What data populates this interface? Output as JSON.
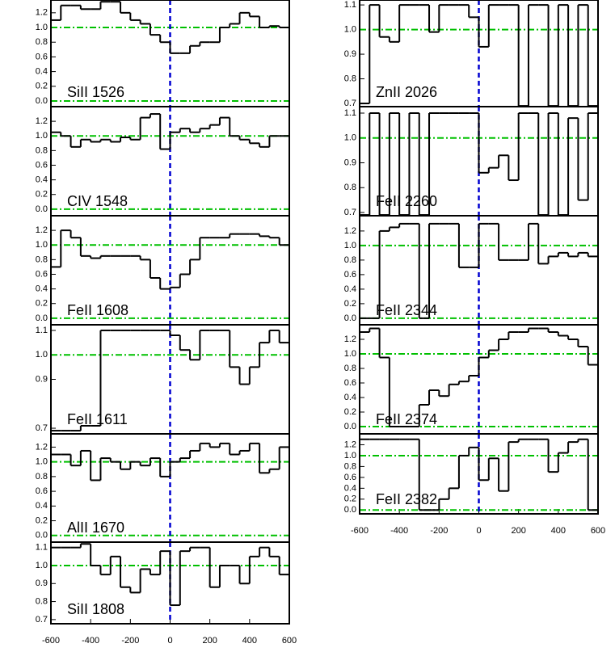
{
  "chart_data": [
    {
      "type": "line",
      "label": "SiII 1526",
      "x": [
        -575,
        -525,
        -475,
        -425,
        -375,
        -325,
        -275,
        -225,
        -175,
        -125,
        -75,
        -25,
        25,
        75,
        125,
        175,
        225,
        275,
        325,
        375,
        425,
        475,
        525,
        575
      ],
      "values": [
        1.1,
        1.3,
        1.3,
        1.25,
        1.25,
        1.35,
        1.35,
        1.2,
        1.1,
        1.05,
        0.9,
        0.8,
        0.65,
        0.65,
        0.75,
        0.8,
        0.8,
        1.0,
        1.05,
        1.2,
        1.15,
        1.0,
        1.02,
        1.0
      ],
      "xlim": [
        -600,
        600
      ],
      "ylim": [
        -0.077,
        1.374
      ],
      "yticks": [
        {
          "value": 0,
          "label": "0.0"
        },
        0.2,
        0.4,
        0.6,
        0.8,
        {
          "value": 1,
          "label": "1.0"
        },
        1.2
      ],
      "reference_lines": [
        0,
        1
      ],
      "zero_velocity": 0
    },
    {
      "type": "line",
      "label": "CIV 1548",
      "x": [
        -575,
        -525,
        -475,
        -425,
        -375,
        -325,
        -275,
        -225,
        -175,
        -125,
        -75,
        -25,
        25,
        75,
        125,
        175,
        225,
        275,
        325,
        375,
        425,
        475,
        525,
        575
      ],
      "values": [
        1.05,
        1.0,
        0.85,
        0.95,
        0.92,
        0.95,
        0.92,
        0.98,
        0.95,
        1.25,
        1.3,
        0.82,
        1.05,
        1.1,
        1.05,
        1.1,
        1.15,
        1.25,
        1.0,
        0.95,
        0.9,
        0.85,
        1.0,
        1.0
      ],
      "xlim": [
        -600,
        600
      ],
      "ylim": [
        -0.09,
        1.4
      ],
      "yticks": [
        {
          "value": 0,
          "label": "0.0"
        },
        0.2,
        0.4,
        0.6,
        0.8,
        {
          "value": 1,
          "label": "1.0"
        },
        1.2
      ],
      "reference_lines": [
        0,
        1
      ],
      "zero_velocity": 0
    },
    {
      "type": "line",
      "label": "FeII 1608",
      "x": [
        -575,
        -525,
        -475,
        -425,
        -375,
        -325,
        -275,
        -225,
        -175,
        -125,
        -75,
        -25,
        25,
        75,
        125,
        175,
        225,
        275,
        325,
        375,
        425,
        475,
        525,
        575
      ],
      "values": [
        0.7,
        1.2,
        1.1,
        0.85,
        0.82,
        0.85,
        0.85,
        0.85,
        0.85,
        0.8,
        0.55,
        0.4,
        0.42,
        0.6,
        0.8,
        1.1,
        1.1,
        1.1,
        1.15,
        1.15,
        1.15,
        1.12,
        1.1,
        1.0
      ],
      "xlim": [
        -600,
        600
      ],
      "ylim": [
        -0.09,
        1.4
      ],
      "yticks": [
        {
          "value": 0,
          "label": "0.0"
        },
        0.2,
        0.4,
        0.6,
        0.8,
        {
          "value": 1,
          "label": "1.0"
        },
        1.2
      ],
      "reference_lines": [
        0,
        1
      ],
      "zero_velocity": 0
    },
    {
      "type": "line",
      "label": "FeII 1611",
      "x": [
        -575,
        -525,
        -475,
        -425,
        -375,
        -325,
        -275,
        -225,
        -175,
        -125,
        -75,
        -25,
        25,
        75,
        125,
        175,
        225,
        275,
        325,
        375,
        425,
        475,
        525,
        575
      ],
      "values": [
        0.69,
        0.69,
        0.69,
        0.71,
        0.71,
        1.1,
        1.1,
        1.1,
        1.1,
        1.1,
        1.1,
        1.1,
        1.08,
        1.02,
        0.98,
        1.1,
        1.1,
        1.1,
        0.95,
        0.88,
        0.95,
        1.05,
        1.1,
        1.05
      ],
      "xlim": [
        -600,
        600
      ],
      "ylim": [
        0.677,
        1.123
      ],
      "yticks": [
        0.7,
        0.9,
        {
          "value": 1,
          "label": "1.0"
        },
        1.1
      ],
      "reference_lines": [
        1
      ],
      "zero_velocity": 0
    },
    {
      "type": "line",
      "label": "AlII 1670",
      "x": [
        -575,
        -525,
        -475,
        -425,
        -375,
        -325,
        -275,
        -225,
        -175,
        -125,
        -75,
        -25,
        25,
        75,
        125,
        175,
        225,
        275,
        325,
        375,
        425,
        475,
        525,
        575
      ],
      "values": [
        1.1,
        1.1,
        0.95,
        1.15,
        0.75,
        1.05,
        1.0,
        0.9,
        1.0,
        0.95,
        1.05,
        0.8,
        1.0,
        1.05,
        1.15,
        1.25,
        1.2,
        1.25,
        1.1,
        1.15,
        1.25,
        0.85,
        0.9,
        1.2
      ],
      "xlim": [
        -600,
        600
      ],
      "ylim": [
        -0.09,
        1.38
      ],
      "yticks": [
        {
          "value": 0,
          "label": "0.0"
        },
        0.2,
        0.4,
        0.6,
        0.8,
        {
          "value": 1,
          "label": "1.0"
        },
        1.2
      ],
      "reference_lines": [
        0,
        1
      ],
      "zero_velocity": 0
    },
    {
      "type": "line",
      "label": "SiII 1808",
      "x": [
        -575,
        -525,
        -475,
        -425,
        -375,
        -325,
        -275,
        -225,
        -175,
        -125,
        -75,
        -25,
        25,
        75,
        125,
        175,
        225,
        275,
        325,
        375,
        425,
        475,
        525,
        575
      ],
      "values": [
        1.1,
        1.1,
        1.1,
        1.12,
        1.0,
        0.95,
        1.05,
        0.88,
        0.85,
        0.98,
        0.95,
        1.08,
        0.78,
        1.08,
        1.1,
        1.1,
        0.88,
        1.0,
        1.0,
        0.9,
        1.05,
        1.1,
        1.05,
        0.95
      ],
      "xlim": [
        -600,
        600
      ],
      "xticks": [
        -600,
        -400,
        -200,
        0,
        200,
        400,
        600
      ],
      "ylim": [
        0.677,
        1.13
      ],
      "yticks": [
        0.7,
        0.8,
        0.9,
        {
          "value": 1,
          "label": "1.0"
        },
        1.1
      ],
      "reference_lines": [
        1
      ],
      "zero_velocity": 0
    },
    {
      "type": "line",
      "label": "ZnII 2026",
      "x": [
        -575,
        -525,
        -475,
        -425,
        -375,
        -325,
        -275,
        -225,
        -175,
        -125,
        -75,
        -25,
        25,
        75,
        125,
        175,
        225,
        275,
        325,
        375,
        425,
        475,
        525,
        575
      ],
      "values": [
        0.7,
        1.1,
        0.97,
        0.95,
        1.1,
        1.1,
        1.1,
        0.99,
        1.1,
        1.1,
        1.1,
        1.05,
        0.93,
        1.1,
        1.1,
        1.1,
        0.69,
        1.1,
        1.1,
        0.69,
        1.1,
        0.69,
        1.1,
        0.69
      ],
      "xlim": [
        -600,
        600
      ],
      "ylim": [
        0.687,
        1.12
      ],
      "yticks": [
        0.7,
        0.8,
        0.9,
        {
          "value": 1,
          "label": "1.0"
        },
        1.1
      ],
      "reference_lines": [
        1
      ],
      "zero_velocity": 0
    },
    {
      "type": "line",
      "label": "FeII 2260",
      "x": [
        -575,
        -525,
        -475,
        -425,
        -375,
        -325,
        -275,
        -225,
        -175,
        -125,
        -75,
        -25,
        25,
        75,
        125,
        175,
        225,
        275,
        325,
        375,
        425,
        475,
        525,
        575
      ],
      "values": [
        0.69,
        1.1,
        0.69,
        1.1,
        0.69,
        1.1,
        0.69,
        1.1,
        1.1,
        1.1,
        1.1,
        1.1,
        0.86,
        0.88,
        0.93,
        0.83,
        1.1,
        1.1,
        0.69,
        1.1,
        0.69,
        1.08,
        0.75,
        1.1
      ],
      "xlim": [
        -600,
        600
      ],
      "ylim": [
        0.687,
        1.126
      ],
      "yticks": [
        0.7,
        0.8,
        0.9,
        {
          "value": 1,
          "label": "1.0"
        },
        1.1
      ],
      "reference_lines": [
        1
      ],
      "zero_velocity": 0
    },
    {
      "type": "line",
      "label": "FeII 2344",
      "x": [
        -575,
        -525,
        -475,
        -425,
        -375,
        -325,
        -275,
        -225,
        -175,
        -125,
        -75,
        -25,
        25,
        75,
        125,
        175,
        225,
        275,
        325,
        375,
        425,
        475,
        525,
        575
      ],
      "values": [
        0.0,
        0.0,
        1.2,
        1.25,
        1.3,
        1.3,
        0.0,
        1.3,
        1.3,
        1.3,
        0.7,
        0.7,
        1.3,
        1.3,
        0.8,
        0.8,
        0.8,
        1.3,
        0.75,
        0.85,
        0.9,
        0.85,
        0.9,
        0.85
      ],
      "xlim": [
        -600,
        600
      ],
      "ylim": [
        -0.09,
        1.41
      ],
      "yticks": [
        {
          "value": 0,
          "label": "0.0"
        },
        0.2,
        0.4,
        0.6,
        0.8,
        {
          "value": 1,
          "label": "1.0"
        },
        1.2
      ],
      "reference_lines": [
        0,
        1
      ],
      "zero_velocity": 0
    },
    {
      "type": "line",
      "label": "FeII 2374",
      "x": [
        -575,
        -525,
        -475,
        -425,
        -375,
        -325,
        -275,
        -225,
        -175,
        -125,
        -75,
        -25,
        25,
        75,
        125,
        175,
        225,
        275,
        325,
        375,
        425,
        475,
        525,
        575
      ],
      "values": [
        1.3,
        1.35,
        0.95,
        0.0,
        0.0,
        0.0,
        0.3,
        0.5,
        0.42,
        0.58,
        0.62,
        0.7,
        0.95,
        1.05,
        1.2,
        1.3,
        1.3,
        1.35,
        1.35,
        1.3,
        1.25,
        1.2,
        1.1,
        0.85
      ],
      "xlim": [
        -600,
        600
      ],
      "ylim": [
        -0.1,
        1.4
      ],
      "yticks": [
        {
          "value": 0,
          "label": "0.0"
        },
        0.2,
        0.4,
        0.6,
        0.8,
        {
          "value": 1,
          "label": "1.0"
        },
        1.2
      ],
      "reference_lines": [
        0,
        1
      ],
      "zero_velocity": 0
    },
    {
      "type": "line",
      "label": "FeII 2382",
      "x": [
        -575,
        -525,
        -475,
        -425,
        -375,
        -325,
        -275,
        -225,
        -175,
        -125,
        -75,
        -25,
        25,
        75,
        125,
        175,
        225,
        275,
        325,
        375,
        425,
        475,
        525,
        575
      ],
      "values": [
        1.3,
        1.3,
        1.3,
        1.3,
        1.3,
        1.3,
        0.0,
        0.0,
        0.2,
        0.4,
        1.0,
        1.15,
        0.55,
        0.95,
        0.35,
        1.25,
        1.3,
        1.3,
        1.3,
        0.7,
        1.05,
        1.25,
        1.3,
        0.0
      ],
      "xlim": [
        -600,
        600
      ],
      "xticks": [
        -600,
        -400,
        -200,
        0,
        200,
        400,
        600
      ],
      "ylim": [
        -0.07,
        1.4
      ],
      "yticks": [
        {
          "value": 0,
          "label": "0.0"
        },
        0.2,
        0.4,
        0.6,
        0.8,
        {
          "value": 1,
          "label": "1.0"
        },
        1.2
      ],
      "reference_lines": [
        0,
        1
      ],
      "zero_velocity": 0
    }
  ]
}
